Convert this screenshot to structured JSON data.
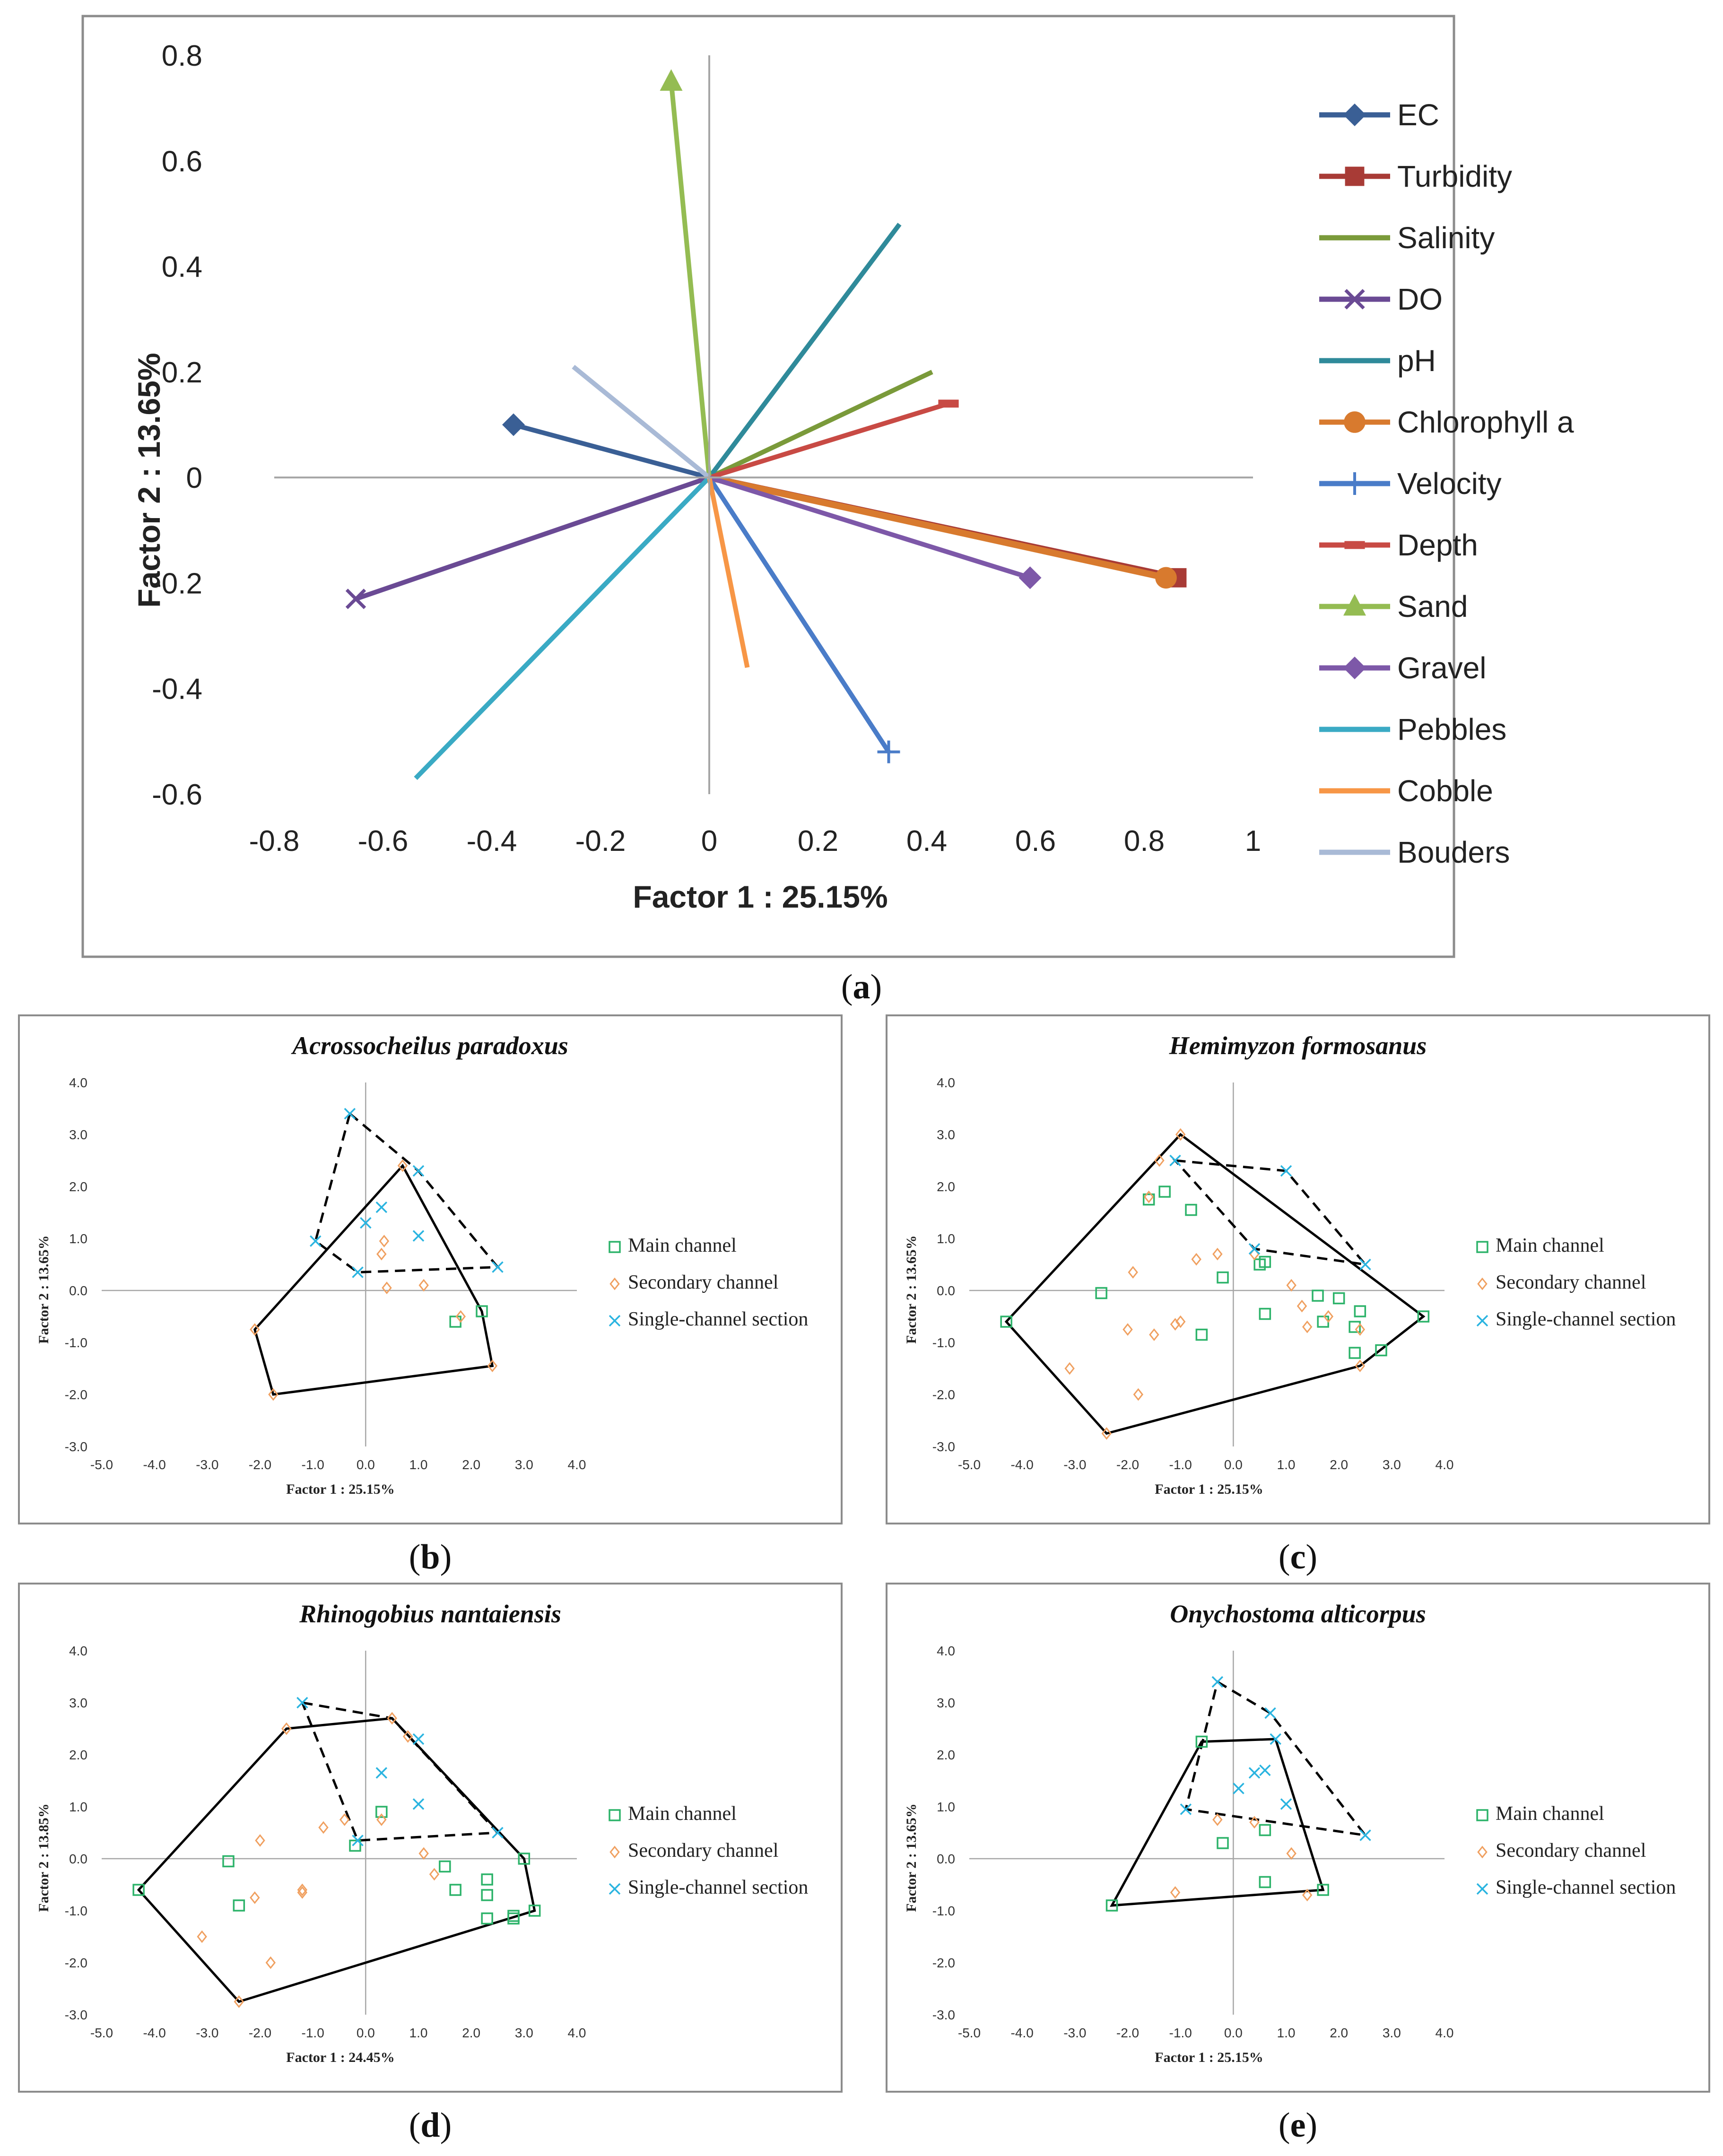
{
  "panel_labels": {
    "a": {
      "open": "(",
      "letter": "a",
      "close": ")"
    },
    "b": {
      "open": "(",
      "letter": "b",
      "close": ")"
    },
    "c": {
      "open": "(",
      "letter": "c",
      "close": ")"
    },
    "d": {
      "open": "(",
      "letter": "d",
      "close": ")"
    },
    "e": {
      "open": "(",
      "letter": "e",
      "close": ")"
    }
  },
  "colors": {
    "main_channel": "#2db36a",
    "secondary_channel": "#f0a060",
    "single_channel": "#2ab4e0",
    "axis": "#a6a6a6",
    "hull": "#000000"
  },
  "chart_data": [
    {
      "id": "a",
      "type": "vector",
      "title": "",
      "xlabel": "Factor 1 : 25.15%",
      "ylabel": "Factor 2 : 13.65%",
      "xlim": [
        -0.8,
        1
      ],
      "ylim": [
        -0.6,
        0.8
      ],
      "x_ticks": [
        "-0.8",
        "-0.6",
        "-0.4",
        "-0.2",
        "0",
        "0.2",
        "0.4",
        "0.6",
        "0.8",
        "1"
      ],
      "y_ticks": [
        "0.8",
        "0.6",
        "0.4",
        "0.2",
        "0",
        "-0.2",
        "-0.4",
        "-0.6"
      ],
      "legend_position": "right",
      "series": [
        {
          "name": "EC",
          "x": -0.36,
          "y": 0.1,
          "color": "#3a5f95",
          "marker": "diamond"
        },
        {
          "name": "Turbidity",
          "x": 0.86,
          "y": -0.19,
          "color": "#a83b36",
          "marker": "square"
        },
        {
          "name": "Salinity",
          "x": 0.41,
          "y": 0.2,
          "color": "#7a9a3a",
          "marker": "none"
        },
        {
          "name": "DO",
          "x": -0.65,
          "y": -0.23,
          "color": "#6a4a94",
          "marker": "x"
        },
        {
          "name": "pH",
          "x": 0.35,
          "y": 0.48,
          "color": "#2f8a9a",
          "marker": "none"
        },
        {
          "name": "Chlorophyll a",
          "x": 0.84,
          "y": -0.19,
          "color": "#d87a2e",
          "marker": "circle"
        },
        {
          "name": "Velocity",
          "x": 0.33,
          "y": -0.52,
          "color": "#4a7cc8",
          "marker": "plus"
        },
        {
          "name": "Depth",
          "x": 0.44,
          "y": 0.14,
          "color": "#c84a44",
          "marker": "dash"
        },
        {
          "name": "Sand",
          "x": -0.07,
          "y": 0.75,
          "color": "#94bc52",
          "marker": "triangle"
        },
        {
          "name": "Gravel",
          "x": 0.59,
          "y": -0.19,
          "color": "#7d58a8",
          "marker": "diamond"
        },
        {
          "name": "Pebbles",
          "x": -0.54,
          "y": -0.57,
          "color": "#3aaac4",
          "marker": "none"
        },
        {
          "name": "Cobble",
          "x": 0.07,
          "y": -0.36,
          "color": "#f79646",
          "marker": "none"
        },
        {
          "name": "Bouders",
          "x": -0.25,
          "y": 0.21,
          "color": "#a9bad6",
          "marker": "none"
        }
      ]
    },
    {
      "id": "b",
      "type": "scatter",
      "title": "Acrossocheilus paradoxus",
      "xlabel": "Factor 1 : 25.15%",
      "ylabel": "Factor 2 : 13.65%",
      "xlim": [
        -5,
        4
      ],
      "ylim": [
        -3,
        4
      ],
      "x_ticks": [
        "-5.0",
        "-4.0",
        "-3.0",
        "-2.0",
        "-1.0",
        "0.0",
        "1.0",
        "2.0",
        "3.0",
        "4.0"
      ],
      "y_ticks": [
        "4.0",
        "3.0",
        "2.0",
        "1.0",
        "0.0",
        "-1.0",
        "-2.0",
        "-3.0"
      ],
      "legend": [
        "Main channel",
        "Secondary channel",
        "Single-channel section"
      ],
      "series": [
        {
          "name": "Main channel",
          "points": [
            [
              1.7,
              -0.6
            ],
            [
              2.2,
              -0.4
            ]
          ]
        },
        {
          "name": "Secondary channel",
          "points": [
            [
              0.4,
              0.05
            ],
            [
              0.3,
              0.7
            ],
            [
              0.35,
              0.95
            ],
            [
              0.7,
              2.4
            ],
            [
              1.1,
              0.1
            ],
            [
              1.8,
              -0.5
            ],
            [
              -2.1,
              -0.75
            ],
            [
              -1.75,
              -2.0
            ],
            [
              2.4,
              -1.45
            ]
          ]
        },
        {
          "name": "Single-channel section",
          "points": [
            [
              -0.3,
              3.4
            ],
            [
              1.0,
              2.3
            ],
            [
              0.3,
              1.6
            ],
            [
              0.0,
              1.3
            ],
            [
              1.0,
              1.05
            ],
            [
              -0.95,
              0.95
            ],
            [
              -0.15,
              0.35
            ],
            [
              2.5,
              0.45
            ]
          ]
        }
      ],
      "hulls": [
        {
          "style": "solid",
          "points": [
            [
              -2.1,
              -0.75
            ],
            [
              0.7,
              2.4
            ],
            [
              2.2,
              -0.4
            ],
            [
              2.4,
              -1.45
            ],
            [
              -1.75,
              -2.0
            ]
          ]
        },
        {
          "style": "dashed",
          "points": [
            [
              -0.3,
              3.4
            ],
            [
              1.0,
              2.3
            ],
            [
              2.5,
              0.45
            ],
            [
              -0.15,
              0.35
            ],
            [
              -0.95,
              0.95
            ]
          ]
        }
      ]
    },
    {
      "id": "c",
      "type": "scatter",
      "title": "Hemimyzon formosanus",
      "xlabel": "Factor 1 : 25.15%",
      "ylabel": "Factor 2 : 13.65%",
      "xlim": [
        -5,
        4
      ],
      "ylim": [
        -3,
        4
      ],
      "x_ticks": [
        "-5.0",
        "-4.0",
        "-3.0",
        "-2.0",
        "-1.0",
        "0.0",
        "1.0",
        "2.0",
        "3.0",
        "4.0"
      ],
      "y_ticks": [
        "4.0",
        "3.0",
        "2.0",
        "1.0",
        "0.0",
        "-1.0",
        "-2.0",
        "-3.0"
      ],
      "legend": [
        "Main channel",
        "Secondary channel",
        "Single-channel section"
      ],
      "series": [
        {
          "name": "Main channel",
          "points": [
            [
              -4.3,
              -0.6
            ],
            [
              -2.5,
              -0.05
            ],
            [
              -1.6,
              1.75
            ],
            [
              -1.3,
              1.9
            ],
            [
              -0.8,
              1.55
            ],
            [
              -0.6,
              -0.85
            ],
            [
              -0.2,
              0.25
            ],
            [
              0.5,
              0.5
            ],
            [
              0.6,
              0.55
            ],
            [
              0.6,
              -0.45
            ],
            [
              1.6,
              -0.1
            ],
            [
              1.7,
              -0.6
            ],
            [
              2.0,
              -0.15
            ],
            [
              2.3,
              -0.7
            ],
            [
              2.3,
              -1.2
            ],
            [
              2.4,
              -0.4
            ],
            [
              2.8,
              -1.15
            ],
            [
              3.6,
              -0.5
            ]
          ]
        },
        {
          "name": "Secondary channel",
          "points": [
            [
              -1.0,
              3.0
            ],
            [
              -1.4,
              2.5
            ],
            [
              -1.6,
              1.8
            ],
            [
              -1.9,
              0.35
            ],
            [
              -2.0,
              -0.75
            ],
            [
              -1.1,
              -0.65
            ],
            [
              -1.0,
              -0.6
            ],
            [
              -0.7,
              0.6
            ],
            [
              -0.3,
              0.7
            ],
            [
              0.4,
              0.7
            ],
            [
              -1.5,
              -0.85
            ],
            [
              -1.8,
              -2.0
            ],
            [
              -3.1,
              -1.5
            ],
            [
              -2.4,
              -2.75
            ],
            [
              1.1,
              0.1
            ],
            [
              1.3,
              -0.3
            ],
            [
              1.8,
              -0.5
            ],
            [
              1.4,
              -0.7
            ],
            [
              2.4,
              -0.75
            ],
            [
              2.4,
              -1.45
            ]
          ]
        },
        {
          "name": "Single-channel section",
          "points": [
            [
              -1.1,
              2.5
            ],
            [
              1.0,
              2.3
            ],
            [
              0.4,
              0.8
            ],
            [
              2.5,
              0.5
            ]
          ]
        }
      ],
      "hulls": [
        {
          "style": "solid",
          "points": [
            [
              -1.0,
              3.0
            ],
            [
              3.6,
              -0.5
            ],
            [
              2.4,
              -1.45
            ],
            [
              -2.4,
              -2.75
            ],
            [
              -4.3,
              -0.6
            ]
          ]
        },
        {
          "style": "dashed",
          "points": [
            [
              -1.1,
              2.5
            ],
            [
              1.0,
              2.3
            ],
            [
              2.5,
              0.5
            ],
            [
              0.4,
              0.8
            ]
          ]
        }
      ]
    },
    {
      "id": "d",
      "type": "scatter",
      "title": "Rhinogobius nantaiensis",
      "xlabel": "Factor 1 : 24.45%",
      "ylabel": "Factor 2 : 13.85%",
      "xlim": [
        -5,
        4
      ],
      "ylim": [
        -3,
        4
      ],
      "x_ticks": [
        "-5.0",
        "-4.0",
        "-3.0",
        "-2.0",
        "-1.0",
        "0.0",
        "1.0",
        "2.0",
        "3.0",
        "4.0"
      ],
      "y_ticks": [
        "4.0",
        "3.0",
        "2.0",
        "1.0",
        "0.0",
        "-1.0",
        "-2.0",
        "-3.0"
      ],
      "legend": [
        "Main channel",
        "Secondary channel",
        "Single-channel section"
      ],
      "series": [
        {
          "name": "Main channel",
          "points": [
            [
              -4.3,
              -0.6
            ],
            [
              -2.6,
              -0.05
            ],
            [
              -2.4,
              -0.9
            ],
            [
              -0.2,
              0.25
            ],
            [
              0.3,
              0.9
            ],
            [
              1.5,
              -0.15
            ],
            [
              1.7,
              -0.6
            ],
            [
              2.3,
              -0.4
            ],
            [
              2.3,
              -0.7
            ],
            [
              2.3,
              -1.15
            ],
            [
              2.8,
              -1.1
            ],
            [
              2.8,
              -1.15
            ],
            [
              3.0,
              0.0
            ],
            [
              3.2,
              -1.0
            ]
          ]
        },
        {
          "name": "Secondary channel",
          "points": [
            [
              -1.5,
              2.5
            ],
            [
              0.5,
              2.7
            ],
            [
              0.8,
              2.35
            ],
            [
              -2.0,
              0.35
            ],
            [
              -0.8,
              0.6
            ],
            [
              -0.4,
              0.75
            ],
            [
              0.3,
              0.75
            ],
            [
              -2.1,
              -0.75
            ],
            [
              -1.2,
              -0.6
            ],
            [
              -1.2,
              -0.65
            ],
            [
              -1.8,
              -2.0
            ],
            [
              -3.1,
              -1.5
            ],
            [
              -2.4,
              -2.75
            ],
            [
              1.1,
              0.1
            ],
            [
              1.3,
              -0.3
            ]
          ]
        },
        {
          "name": "Single-channel section",
          "points": [
            [
              -1.2,
              3.0
            ],
            [
              1.0,
              2.3
            ],
            [
              0.3,
              1.65
            ],
            [
              1.0,
              1.05
            ],
            [
              -0.15,
              0.35
            ],
            [
              2.5,
              0.5
            ]
          ]
        }
      ],
      "hulls": [
        {
          "style": "solid",
          "points": [
            [
              -1.5,
              2.5
            ],
            [
              0.5,
              2.7
            ],
            [
              3.0,
              0.0
            ],
            [
              3.2,
              -1.0
            ],
            [
              -2.4,
              -2.75
            ],
            [
              -4.3,
              -0.6
            ]
          ]
        },
        {
          "style": "dashed",
          "points": [
            [
              -1.2,
              3.0
            ],
            [
              0.5,
              2.7
            ],
            [
              2.5,
              0.5
            ],
            [
              -0.15,
              0.35
            ]
          ]
        }
      ]
    },
    {
      "id": "e",
      "type": "scatter",
      "title": "Onychostoma alticorpus",
      "xlabel": "Factor 1 : 25.15%",
      "ylabel": "Factor 2 : 13.65%",
      "xlim": [
        -5,
        4
      ],
      "ylim": [
        -3,
        4
      ],
      "x_ticks": [
        "-5.0",
        "-4.0",
        "-3.0",
        "-2.0",
        "-1.0",
        "0.0",
        "1.0",
        "2.0",
        "3.0",
        "4.0"
      ],
      "y_ticks": [
        "4.0",
        "3.0",
        "2.0",
        "1.0",
        "0.0",
        "-1.0",
        "-2.0",
        "-3.0"
      ],
      "legend": [
        "Main channel",
        "Secondary channel",
        "Single-channel section"
      ],
      "series": [
        {
          "name": "Main channel",
          "points": [
            [
              -2.3,
              -0.9
            ],
            [
              -0.6,
              2.25
            ],
            [
              -0.2,
              0.3
            ],
            [
              0.6,
              0.55
            ],
            [
              0.6,
              -0.45
            ],
            [
              1.7,
              -0.6
            ]
          ]
        },
        {
          "name": "Secondary channel",
          "points": [
            [
              -1.1,
              -0.65
            ],
            [
              -0.3,
              0.75
            ],
            [
              0.4,
              0.7
            ],
            [
              1.1,
              0.1
            ],
            [
              1.4,
              -0.7
            ]
          ]
        },
        {
          "name": "Single-channel section",
          "points": [
            [
              -0.3,
              3.4
            ],
            [
              0.7,
              2.8
            ],
            [
              0.8,
              2.3
            ],
            [
              0.4,
              1.65
            ],
            [
              0.6,
              1.7
            ],
            [
              0.1,
              1.35
            ],
            [
              1.0,
              1.05
            ],
            [
              -0.9,
              0.95
            ],
            [
              2.5,
              0.45
            ]
          ]
        }
      ],
      "hulls": [
        {
          "style": "solid",
          "points": [
            [
              -0.6,
              2.25
            ],
            [
              0.8,
              2.3
            ],
            [
              1.7,
              -0.6
            ],
            [
              -2.3,
              -0.9
            ]
          ]
        },
        {
          "style": "dashed",
          "points": [
            [
              -0.3,
              3.4
            ],
            [
              0.7,
              2.8
            ],
            [
              2.5,
              0.45
            ],
            [
              -0.9,
              0.95
            ]
          ]
        }
      ]
    }
  ]
}
